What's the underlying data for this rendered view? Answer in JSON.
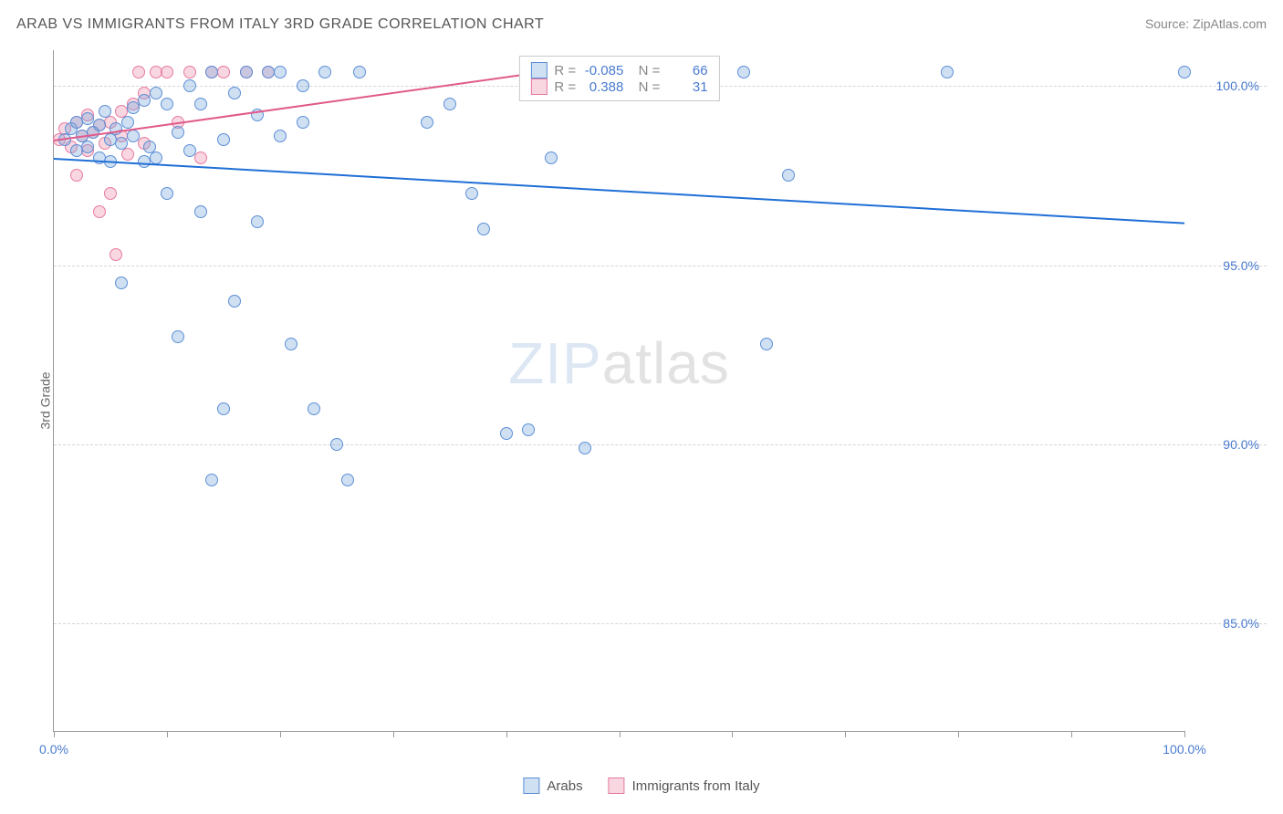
{
  "title": "ARAB VS IMMIGRANTS FROM ITALY 3RD GRADE CORRELATION CHART",
  "source": "Source: ZipAtlas.com",
  "ylabel": "3rd Grade",
  "watermark": {
    "part1": "ZIP",
    "part2": "atlas"
  },
  "colors": {
    "series_a_fill": "rgba(120,165,220,0.35)",
    "series_a_stroke": "#5b8fd6",
    "series_b_fill": "rgba(235,140,170,0.35)",
    "series_b_stroke": "#e67aa0",
    "trend_a": "#1f6fd6",
    "trend_b": "#e05a8a",
    "axis_text": "#4a7bd0"
  },
  "xlim": [
    0,
    100
  ],
  "ylim": [
    82,
    101
  ],
  "yticks": [
    {
      "v": 100,
      "label": "100.0%"
    },
    {
      "v": 95,
      "label": "95.0%"
    },
    {
      "v": 90,
      "label": "90.0%"
    },
    {
      "v": 85,
      "label": "85.0%"
    }
  ],
  "xticks_major": [
    0,
    10,
    20,
    30,
    40,
    50,
    60,
    70,
    80,
    90,
    100
  ],
  "xtick_labels": [
    {
      "v": 0,
      "label": "0.0%"
    },
    {
      "v": 100,
      "label": "100.0%"
    }
  ],
  "legend_top": {
    "rows": [
      {
        "swatch": "a",
        "r_label": "R =",
        "r_value": "-0.085",
        "n_label": "N =",
        "n_value": "66"
      },
      {
        "swatch": "b",
        "r_label": "R =",
        "r_value": "0.388",
        "n_label": "N =",
        "n_value": "31"
      }
    ]
  },
  "legend_bottom": [
    {
      "swatch": "a",
      "label": "Arabs"
    },
    {
      "swatch": "b",
      "label": "Immigrants from Italy"
    }
  ],
  "trend_lines": {
    "a": {
      "x1": 0,
      "y1": 98.0,
      "x2": 100,
      "y2": 96.2
    },
    "b": {
      "x1": 0,
      "y1": 98.5,
      "x2": 43,
      "y2": 100.4
    }
  },
  "series_a": [
    {
      "x": 1,
      "y": 98.5
    },
    {
      "x": 1.5,
      "y": 98.8
    },
    {
      "x": 2,
      "y": 98.2
    },
    {
      "x": 2,
      "y": 99.0
    },
    {
      "x": 2.5,
      "y": 98.6
    },
    {
      "x": 3,
      "y": 98.3
    },
    {
      "x": 3,
      "y": 99.1
    },
    {
      "x": 3.5,
      "y": 98.7
    },
    {
      "x": 4,
      "y": 98.9
    },
    {
      "x": 4,
      "y": 98.0
    },
    {
      "x": 4.5,
      "y": 99.3
    },
    {
      "x": 5,
      "y": 98.5
    },
    {
      "x": 5,
      "y": 97.9
    },
    {
      "x": 5.5,
      "y": 98.8
    },
    {
      "x": 6,
      "y": 94.5
    },
    {
      "x": 6,
      "y": 98.4
    },
    {
      "x": 6.5,
      "y": 99.0
    },
    {
      "x": 7,
      "y": 98.6
    },
    {
      "x": 7,
      "y": 99.4
    },
    {
      "x": 8,
      "y": 97.9
    },
    {
      "x": 8,
      "y": 99.6
    },
    {
      "x": 8.5,
      "y": 98.3
    },
    {
      "x": 9,
      "y": 99.8
    },
    {
      "x": 9,
      "y": 98.0
    },
    {
      "x": 10,
      "y": 97.0
    },
    {
      "x": 10,
      "y": 99.5
    },
    {
      "x": 11,
      "y": 98.7
    },
    {
      "x": 11,
      "y": 93.0
    },
    {
      "x": 12,
      "y": 100.0
    },
    {
      "x": 12,
      "y": 98.2
    },
    {
      "x": 13,
      "y": 96.5
    },
    {
      "x": 13,
      "y": 99.5
    },
    {
      "x": 14,
      "y": 89.0
    },
    {
      "x": 14,
      "y": 100.4
    },
    {
      "x": 15,
      "y": 91.0
    },
    {
      "x": 15,
      "y": 98.5
    },
    {
      "x": 16,
      "y": 94.0
    },
    {
      "x": 16,
      "y": 99.8
    },
    {
      "x": 17,
      "y": 100.4
    },
    {
      "x": 18,
      "y": 96.2
    },
    {
      "x": 18,
      "y": 99.2
    },
    {
      "x": 19,
      "y": 100.4
    },
    {
      "x": 20,
      "y": 98.6
    },
    {
      "x": 20,
      "y": 100.4
    },
    {
      "x": 21,
      "y": 92.8
    },
    {
      "x": 22,
      "y": 100.0
    },
    {
      "x": 22,
      "y": 99.0
    },
    {
      "x": 23,
      "y": 91.0
    },
    {
      "x": 24,
      "y": 100.4
    },
    {
      "x": 25,
      "y": 90.0
    },
    {
      "x": 26,
      "y": 89.0
    },
    {
      "x": 27,
      "y": 100.4
    },
    {
      "x": 33,
      "y": 99.0
    },
    {
      "x": 35,
      "y": 99.5
    },
    {
      "x": 37,
      "y": 97.0
    },
    {
      "x": 38,
      "y": 96.0
    },
    {
      "x": 40,
      "y": 90.3
    },
    {
      "x": 42,
      "y": 90.4
    },
    {
      "x": 44,
      "y": 98.0
    },
    {
      "x": 47,
      "y": 89.9
    },
    {
      "x": 54,
      "y": 100.4
    },
    {
      "x": 61,
      "y": 100.4
    },
    {
      "x": 63,
      "y": 92.8
    },
    {
      "x": 65,
      "y": 97.5
    },
    {
      "x": 79,
      "y": 100.4
    },
    {
      "x": 100,
      "y": 100.4
    }
  ],
  "series_b": [
    {
      "x": 0.5,
      "y": 98.5
    },
    {
      "x": 1,
      "y": 98.8
    },
    {
      "x": 1.5,
      "y": 98.3
    },
    {
      "x": 2,
      "y": 99.0
    },
    {
      "x": 2,
      "y": 97.5
    },
    {
      "x": 2.5,
      "y": 98.6
    },
    {
      "x": 3,
      "y": 98.2
    },
    {
      "x": 3,
      "y": 99.2
    },
    {
      "x": 3.5,
      "y": 98.7
    },
    {
      "x": 4,
      "y": 96.5
    },
    {
      "x": 4,
      "y": 98.9
    },
    {
      "x": 4.5,
      "y": 98.4
    },
    {
      "x": 5,
      "y": 99.0
    },
    {
      "x": 5,
      "y": 97.0
    },
    {
      "x": 5.5,
      "y": 95.3
    },
    {
      "x": 6,
      "y": 98.6
    },
    {
      "x": 6,
      "y": 99.3
    },
    {
      "x": 6.5,
      "y": 98.1
    },
    {
      "x": 7,
      "y": 99.5
    },
    {
      "x": 7.5,
      "y": 100.4
    },
    {
      "x": 8,
      "y": 98.4
    },
    {
      "x": 8,
      "y": 99.8
    },
    {
      "x": 9,
      "y": 100.4
    },
    {
      "x": 10,
      "y": 100.4
    },
    {
      "x": 11,
      "y": 99.0
    },
    {
      "x": 12,
      "y": 100.4
    },
    {
      "x": 13,
      "y": 98.0
    },
    {
      "x": 14,
      "y": 100.4
    },
    {
      "x": 15,
      "y": 100.4
    },
    {
      "x": 17,
      "y": 100.4
    },
    {
      "x": 19,
      "y": 100.4
    }
  ]
}
